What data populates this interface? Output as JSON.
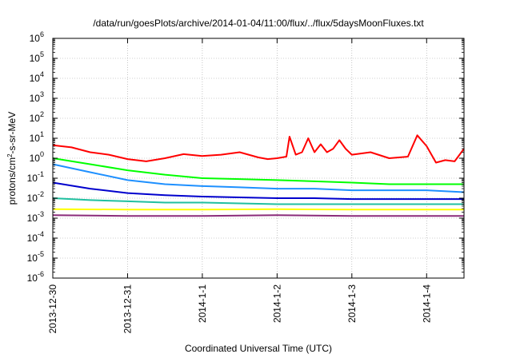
{
  "chart_data": {
    "type": "line",
    "title": "/data/run/goesPlots/archive/2014-01-04/11:00/flux/../flux/5daysMoonFluxes.txt",
    "xlabel": "Coordinated Universal Time (UTC)",
    "ylabel": "protons/cm²-s-sr-MeV",
    "ylabel_parts": {
      "pre": "protons/cm",
      "sup": "2",
      "post": "-s-sr-MeV"
    },
    "y_scale": "log",
    "ylim": [
      1e-06,
      1000000
    ],
    "y_ticks": [
      {
        "base": "10",
        "exp": "-6",
        "value": 1e-06
      },
      {
        "base": "10",
        "exp": "-5",
        "value": 1e-05
      },
      {
        "base": "10",
        "exp": "-4",
        "value": 0.0001
      },
      {
        "base": "10",
        "exp": "-3",
        "value": 0.001
      },
      {
        "base": "10",
        "exp": "-2",
        "value": 0.01
      },
      {
        "base": "10",
        "exp": "-1",
        "value": 0.1
      },
      {
        "base": "10",
        "exp": "0",
        "value": 1
      },
      {
        "base": "10",
        "exp": "1",
        "value": 10
      },
      {
        "base": "10",
        "exp": "2",
        "value": 100
      },
      {
        "base": "10",
        "exp": "3",
        "value": 1000
      },
      {
        "base": "10",
        "exp": "4",
        "value": 10000
      },
      {
        "base": "10",
        "exp": "5",
        "value": 100000
      },
      {
        "base": "10",
        "exp": "6",
        "value": 1000000
      }
    ],
    "x_scale": "time",
    "xlim": [
      "2013-12-30T00:00",
      "2014-01-04T12:00"
    ],
    "x_ticks": [
      {
        "label": "2013-12-30",
        "value": "2013-12-30T00:00"
      },
      {
        "label": "2013-12-31",
        "value": "2013-12-31T00:00"
      },
      {
        "label": "2014-1-1",
        "value": "2014-01-01T00:00"
      },
      {
        "label": "2014-1-2",
        "value": "2014-01-02T00:00"
      },
      {
        "label": "2014-1-3",
        "value": "2014-01-03T00:00"
      },
      {
        "label": "2014-1-4",
        "value": "2014-01-04T00:00"
      }
    ],
    "grid": true,
    "legend": "none",
    "series": [
      {
        "color": "#ff0000",
        "points": [
          [
            "2013-12-30T00:00",
            4.5
          ],
          [
            "2013-12-30T06:00",
            3.5
          ],
          [
            "2013-12-30T12:00",
            2.0
          ],
          [
            "2013-12-30T18:00",
            1.5
          ],
          [
            "2013-12-31T00:00",
            0.9
          ],
          [
            "2013-12-31T06:00",
            0.7
          ],
          [
            "2013-12-31T12:00",
            1.0
          ],
          [
            "2013-12-31T18:00",
            1.6
          ],
          [
            "2014-01-01T00:00",
            1.3
          ],
          [
            "2014-01-01T06:00",
            1.5
          ],
          [
            "2014-01-01T12:00",
            2.0
          ],
          [
            "2014-01-01T18:00",
            1.1
          ],
          [
            "2014-01-01T21:00",
            0.9
          ],
          [
            "2014-01-02T00:00",
            1.0
          ],
          [
            "2014-01-02T03:00",
            1.2
          ],
          [
            "2014-01-02T04:00",
            12.0
          ],
          [
            "2014-01-02T06:00",
            1.5
          ],
          [
            "2014-01-02T08:00",
            2.0
          ],
          [
            "2014-01-02T10:00",
            10.0
          ],
          [
            "2014-01-02T12:00",
            2.0
          ],
          [
            "2014-01-02T14:00",
            5.0
          ],
          [
            "2014-01-02T16:00",
            2.0
          ],
          [
            "2014-01-02T18:00",
            3.0
          ],
          [
            "2014-01-02T20:00",
            8.0
          ],
          [
            "2014-01-02T22:00",
            3.0
          ],
          [
            "2014-01-03T00:00",
            1.5
          ],
          [
            "2014-01-03T06:00",
            2.0
          ],
          [
            "2014-01-03T12:00",
            1.0
          ],
          [
            "2014-01-03T18:00",
            1.2
          ],
          [
            "2014-01-03T21:00",
            14.0
          ],
          [
            "2014-01-04T00:00",
            4.0
          ],
          [
            "2014-01-04T03:00",
            0.6
          ],
          [
            "2014-01-04T06:00",
            0.8
          ],
          [
            "2014-01-04T09:00",
            0.7
          ],
          [
            "2014-01-04T12:00",
            3.0
          ]
        ]
      },
      {
        "color": "#00ff00",
        "points": [
          [
            "2013-12-30T00:00",
            1.0
          ],
          [
            "2013-12-30T12:00",
            0.5
          ],
          [
            "2013-12-31T00:00",
            0.25
          ],
          [
            "2013-12-31T12:00",
            0.15
          ],
          [
            "2014-01-01T00:00",
            0.1
          ],
          [
            "2014-01-01T12:00",
            0.09
          ],
          [
            "2014-01-02T00:00",
            0.08
          ],
          [
            "2014-01-02T12:00",
            0.07
          ],
          [
            "2014-01-03T00:00",
            0.06
          ],
          [
            "2014-01-03T12:00",
            0.05
          ],
          [
            "2014-01-04T00:00",
            0.05
          ],
          [
            "2014-01-04T12:00",
            0.05
          ]
        ]
      },
      {
        "color": "#1e90ff",
        "points": [
          [
            "2013-12-30T00:00",
            0.5
          ],
          [
            "2013-12-30T12:00",
            0.2
          ],
          [
            "2013-12-31T00:00",
            0.08
          ],
          [
            "2013-12-31T12:00",
            0.05
          ],
          [
            "2014-01-01T00:00",
            0.04
          ],
          [
            "2014-01-01T12:00",
            0.035
          ],
          [
            "2014-01-02T00:00",
            0.03
          ],
          [
            "2014-01-02T12:00",
            0.03
          ],
          [
            "2014-01-03T00:00",
            0.025
          ],
          [
            "2014-01-03T12:00",
            0.025
          ],
          [
            "2014-01-04T00:00",
            0.025
          ],
          [
            "2014-01-04T12:00",
            0.02
          ]
        ]
      },
      {
        "color": "#0000cd",
        "points": [
          [
            "2013-12-30T00:00",
            0.06
          ],
          [
            "2013-12-30T12:00",
            0.03
          ],
          [
            "2013-12-31T00:00",
            0.018
          ],
          [
            "2013-12-31T12:00",
            0.014
          ],
          [
            "2014-01-01T00:00",
            0.012
          ],
          [
            "2014-01-01T12:00",
            0.011
          ],
          [
            "2014-01-02T00:00",
            0.01
          ],
          [
            "2014-01-02T12:00",
            0.01
          ],
          [
            "2014-01-03T00:00",
            0.009
          ],
          [
            "2014-01-03T12:00",
            0.009
          ],
          [
            "2014-01-04T00:00",
            0.009
          ],
          [
            "2014-01-04T12:00",
            0.009
          ]
        ]
      },
      {
        "color": "#20c0a0",
        "points": [
          [
            "2013-12-30T00:00",
            0.01
          ],
          [
            "2013-12-30T12:00",
            0.008
          ],
          [
            "2013-12-31T00:00",
            0.007
          ],
          [
            "2013-12-31T12:00",
            0.006
          ],
          [
            "2014-01-01T00:00",
            0.006
          ],
          [
            "2014-01-01T12:00",
            0.0055
          ],
          [
            "2014-01-02T00:00",
            0.005
          ],
          [
            "2014-01-02T12:00",
            0.005
          ],
          [
            "2014-01-03T00:00",
            0.005
          ],
          [
            "2014-01-03T12:00",
            0.005
          ],
          [
            "2014-01-04T00:00",
            0.005
          ],
          [
            "2014-01-04T12:00",
            0.005
          ]
        ]
      },
      {
        "color": "#ffff00",
        "points": [
          [
            "2013-12-30T00:00",
            0.0028
          ],
          [
            "2013-12-31T00:00",
            0.0027
          ],
          [
            "2014-01-01T00:00",
            0.0027
          ],
          [
            "2014-01-02T00:00",
            0.0028
          ],
          [
            "2014-01-03T00:00",
            0.0027
          ],
          [
            "2014-01-04T00:00",
            0.0027
          ],
          [
            "2014-01-04T12:00",
            0.0027
          ]
        ]
      },
      {
        "color": "#8b2c7a",
        "points": [
          [
            "2013-12-30T00:00",
            0.0014
          ],
          [
            "2013-12-31T00:00",
            0.0013
          ],
          [
            "2014-01-01T00:00",
            0.0013
          ],
          [
            "2014-01-02T00:00",
            0.0014
          ],
          [
            "2014-01-03T00:00",
            0.0013
          ],
          [
            "2014-01-04T00:00",
            0.0013
          ],
          [
            "2014-01-04T12:00",
            0.0013
          ]
        ]
      }
    ]
  }
}
